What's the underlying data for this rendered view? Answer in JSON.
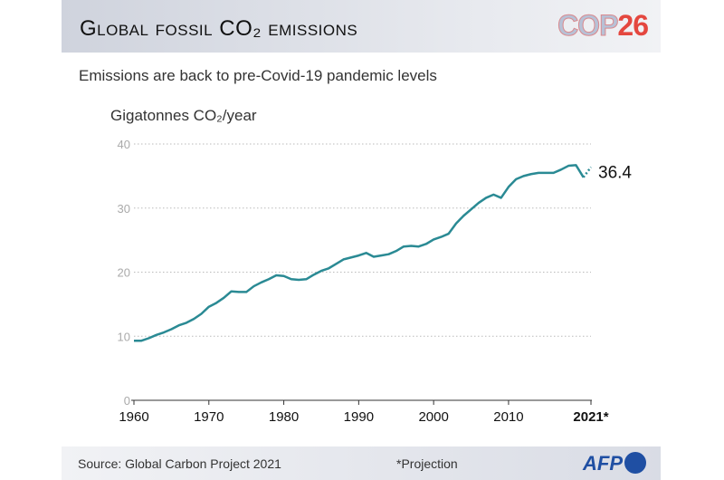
{
  "header": {
    "title": "Global fossil CO₂ emissions",
    "logo_left": "COP",
    "logo_right": "26"
  },
  "subtitle": "Emissions are back to pre-Covid-19 pandemic levels",
  "footer": {
    "source": "Source: Global Carbon Project 2021",
    "note": "*Projection",
    "logo": "AFP"
  },
  "colors": {
    "line": "#2a8a94",
    "grid": "#bbbbbb",
    "cop_red": "#e4473f",
    "afp_blue": "#1f4fa3"
  },
  "chart_data": {
    "type": "line",
    "ylabel": "Gigatonnes CO₂/year",
    "ylim": [
      0,
      40
    ],
    "xlim": [
      1960,
      2021
    ],
    "yticks": [
      "0",
      "10",
      "20",
      "30",
      "40"
    ],
    "xticks": [
      {
        "v": 1960,
        "label": "1960"
      },
      {
        "v": 1970,
        "label": "1970"
      },
      {
        "v": 1980,
        "label": "1980"
      },
      {
        "v": 1990,
        "label": "1990"
      },
      {
        "v": 2000,
        "label": "2000"
      },
      {
        "v": 2010,
        "label": "2010"
      },
      {
        "v": 2021,
        "label": "2021*",
        "bold": true
      }
    ],
    "grid": "horizontal dotted",
    "x": [
      1960,
      1961,
      1962,
      1963,
      1964,
      1965,
      1966,
      1967,
      1968,
      1969,
      1970,
      1971,
      1972,
      1973,
      1974,
      1975,
      1976,
      1977,
      1978,
      1979,
      1980,
      1981,
      1982,
      1983,
      1984,
      1985,
      1986,
      1987,
      1988,
      1989,
      1990,
      1991,
      1992,
      1993,
      1994,
      1995,
      1996,
      1997,
      1998,
      1999,
      2000,
      2001,
      2002,
      2003,
      2004,
      2005,
      2006,
      2007,
      2008,
      2009,
      2010,
      2011,
      2012,
      2013,
      2014,
      2015,
      2016,
      2017,
      2018,
      2019,
      2020
    ],
    "values": [
      9.3,
      9.3,
      9.7,
      10.2,
      10.6,
      11.1,
      11.7,
      12.1,
      12.7,
      13.5,
      14.6,
      15.2,
      16.0,
      17.0,
      16.9,
      16.9,
      17.8,
      18.4,
      18.9,
      19.5,
      19.4,
      18.9,
      18.8,
      18.9,
      19.6,
      20.2,
      20.6,
      21.3,
      22.0,
      22.3,
      22.6,
      23.0,
      22.4,
      22.6,
      22.8,
      23.3,
      24.0,
      24.1,
      24.0,
      24.4,
      25.1,
      25.5,
      26.0,
      27.6,
      28.8,
      29.8,
      30.8,
      31.6,
      32.1,
      31.6,
      33.3,
      34.5,
      35.0,
      35.3,
      35.5,
      35.5,
      35.5,
      36.0,
      36.6,
      36.7,
      34.8
    ],
    "projection": {
      "x": [
        2020,
        2021
      ],
      "values": [
        34.8,
        36.4
      ]
    },
    "annotation": "36.4"
  }
}
